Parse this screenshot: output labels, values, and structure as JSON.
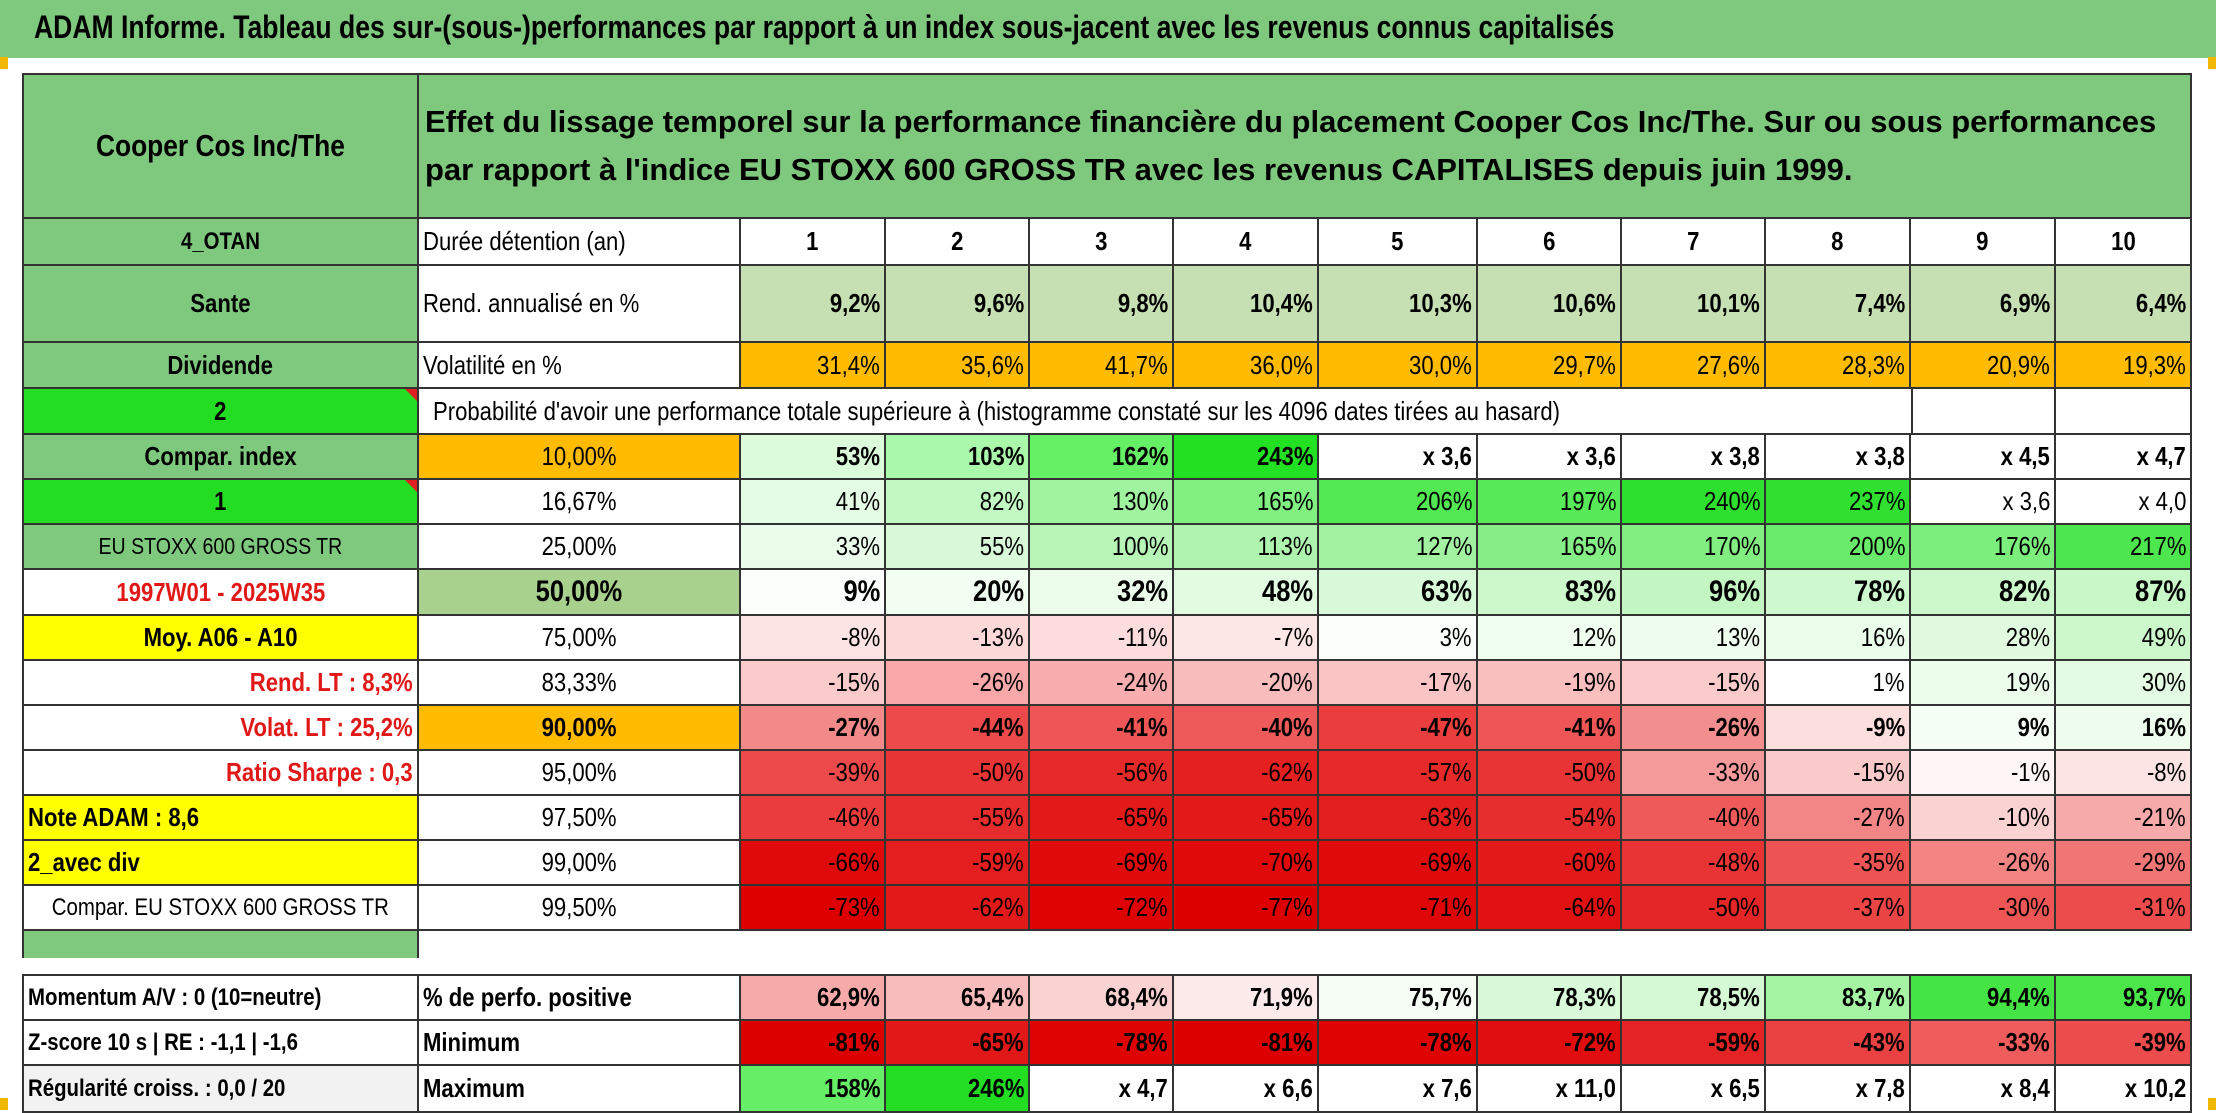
{
  "header": {
    "title": "ADAM Informe. Tableau des sur-(sous-)performances par rapport à un index sous-jacent avec les revenus connus capitalisés"
  },
  "side": {
    "asset_name": "Cooper Cos Inc/The",
    "code": "4_OTAN",
    "sector": "Sante",
    "type": "Dividende",
    "num1": "2",
    "compar_index": "Compar. index",
    "num2": "1",
    "index_name": "EU STOXX 600 GROSS TR",
    "period": "1997W01 - 2025W35",
    "moy": "Moy. A06 - A10",
    "rend_lt": "Rend. LT :   8,3%",
    "volat_lt": "Volat. LT :   25,2%",
    "sharpe": "Ratio Sharpe :   0,3",
    "note": "Note ADAM : 8,6",
    "avec_div": "2_avec div",
    "compar_full": "Compar. EU STOXX 600 GROSS TR",
    "momentum": "Momentum A/V : 0 (10=neutre)",
    "zscore": "Z-score 10 s | RE : -1,1 | -1,6",
    "regularite": "Régularité croiss. : 0,0 / 20"
  },
  "main": {
    "description": "Effet du lissage temporel sur la performance financière du placement Cooper Cos Inc/The. Sur ou sous performances par rapport à l'indice EU STOXX 600 GROSS TR avec les revenus CAPITALISES depuis juin 1999.",
    "prob_title": "Probabilité d'avoir une performance totale supérieure à (histogramme constaté sur les 4096 dates tirées au hasard)"
  },
  "table": {
    "duree_label": "Durée détention (an)",
    "years": [
      "1",
      "2",
      "3",
      "4",
      "5",
      "6",
      "7",
      "8",
      "9",
      "10"
    ],
    "rend_label": "Rend. annualisé en %",
    "rend": [
      "9,2%",
      "9,6%",
      "9,8%",
      "10,4%",
      "10,3%",
      "10,6%",
      "10,1%",
      "7,4%",
      "6,9%",
      "6,4%"
    ],
    "vol_label": "Volatilité en %",
    "vol": [
      "31,4%",
      "35,6%",
      "41,7%",
      "36,0%",
      "30,0%",
      "29,7%",
      "27,6%",
      "28,3%",
      "20,9%",
      "19,3%"
    ],
    "prob_rows": [
      {
        "pct": "10,00%",
        "values": [
          "53%",
          "103%",
          "162%",
          "243%",
          "x 3,6",
          "x 3,6",
          "x 3,8",
          "x 3,8",
          "x 4,5",
          "x 4,7"
        ]
      },
      {
        "pct": "16,67%",
        "values": [
          "41%",
          "82%",
          "130%",
          "165%",
          "206%",
          "197%",
          "240%",
          "237%",
          "x 3,6",
          "x 4,0"
        ]
      },
      {
        "pct": "25,00%",
        "values": [
          "33%",
          "55%",
          "100%",
          "113%",
          "127%",
          "165%",
          "170%",
          "200%",
          "176%",
          "217%"
        ]
      },
      {
        "pct": "50,00%",
        "values": [
          "9%",
          "20%",
          "32%",
          "48%",
          "63%",
          "83%",
          "96%",
          "78%",
          "82%",
          "87%"
        ]
      },
      {
        "pct": "75,00%",
        "values": [
          "-8%",
          "-13%",
          "-11%",
          "-7%",
          "3%",
          "12%",
          "13%",
          "16%",
          "28%",
          "49%"
        ]
      },
      {
        "pct": "83,33%",
        "values": [
          "-15%",
          "-26%",
          "-24%",
          "-20%",
          "-17%",
          "-19%",
          "-15%",
          "1%",
          "19%",
          "30%"
        ]
      },
      {
        "pct": "90,00%",
        "values": [
          "-27%",
          "-44%",
          "-41%",
          "-40%",
          "-47%",
          "-41%",
          "-26%",
          "-9%",
          "9%",
          "16%"
        ]
      },
      {
        "pct": "95,00%",
        "values": [
          "-39%",
          "-50%",
          "-56%",
          "-62%",
          "-57%",
          "-50%",
          "-33%",
          "-15%",
          "-1%",
          "-8%"
        ]
      },
      {
        "pct": "97,50%",
        "values": [
          "-46%",
          "-55%",
          "-65%",
          "-65%",
          "-63%",
          "-54%",
          "-40%",
          "-27%",
          "-10%",
          "-21%"
        ]
      },
      {
        "pct": "99,00%",
        "values": [
          "-66%",
          "-59%",
          "-69%",
          "-70%",
          "-69%",
          "-60%",
          "-48%",
          "-35%",
          "-26%",
          "-29%"
        ]
      },
      {
        "pct": "99,50%",
        "values": [
          "-73%",
          "-62%",
          "-72%",
          "-77%",
          "-71%",
          "-64%",
          "-50%",
          "-37%",
          "-30%",
          "-31%"
        ]
      }
    ],
    "pos_label": "% de perfo. positive",
    "pos": [
      "62,9%",
      "65,4%",
      "68,4%",
      "71,9%",
      "75,7%",
      "78,3%",
      "78,5%",
      "83,7%",
      "94,4%",
      "93,7%"
    ],
    "min_label": "Minimum",
    "min": [
      "-81%",
      "-65%",
      "-78%",
      "-81%",
      "-78%",
      "-72%",
      "-59%",
      "-43%",
      "-33%",
      "-39%"
    ],
    "max_label": "Maximum",
    "max": [
      "158%",
      "246%",
      "x 4,7",
      "x 6,6",
      "x 7,6",
      "x 11,0",
      "x 6,5",
      "x 7,8",
      "x 8,4",
      "x 10,2"
    ]
  },
  "colors": {
    "banner": "#7fc97f",
    "side_green": "#7fc97f",
    "bright_green": "#22dd22",
    "yellow": "#ffff00",
    "orange": "#ffbb00",
    "light_green": "#c6e0b4",
    "red_text": "#e01818"
  }
}
